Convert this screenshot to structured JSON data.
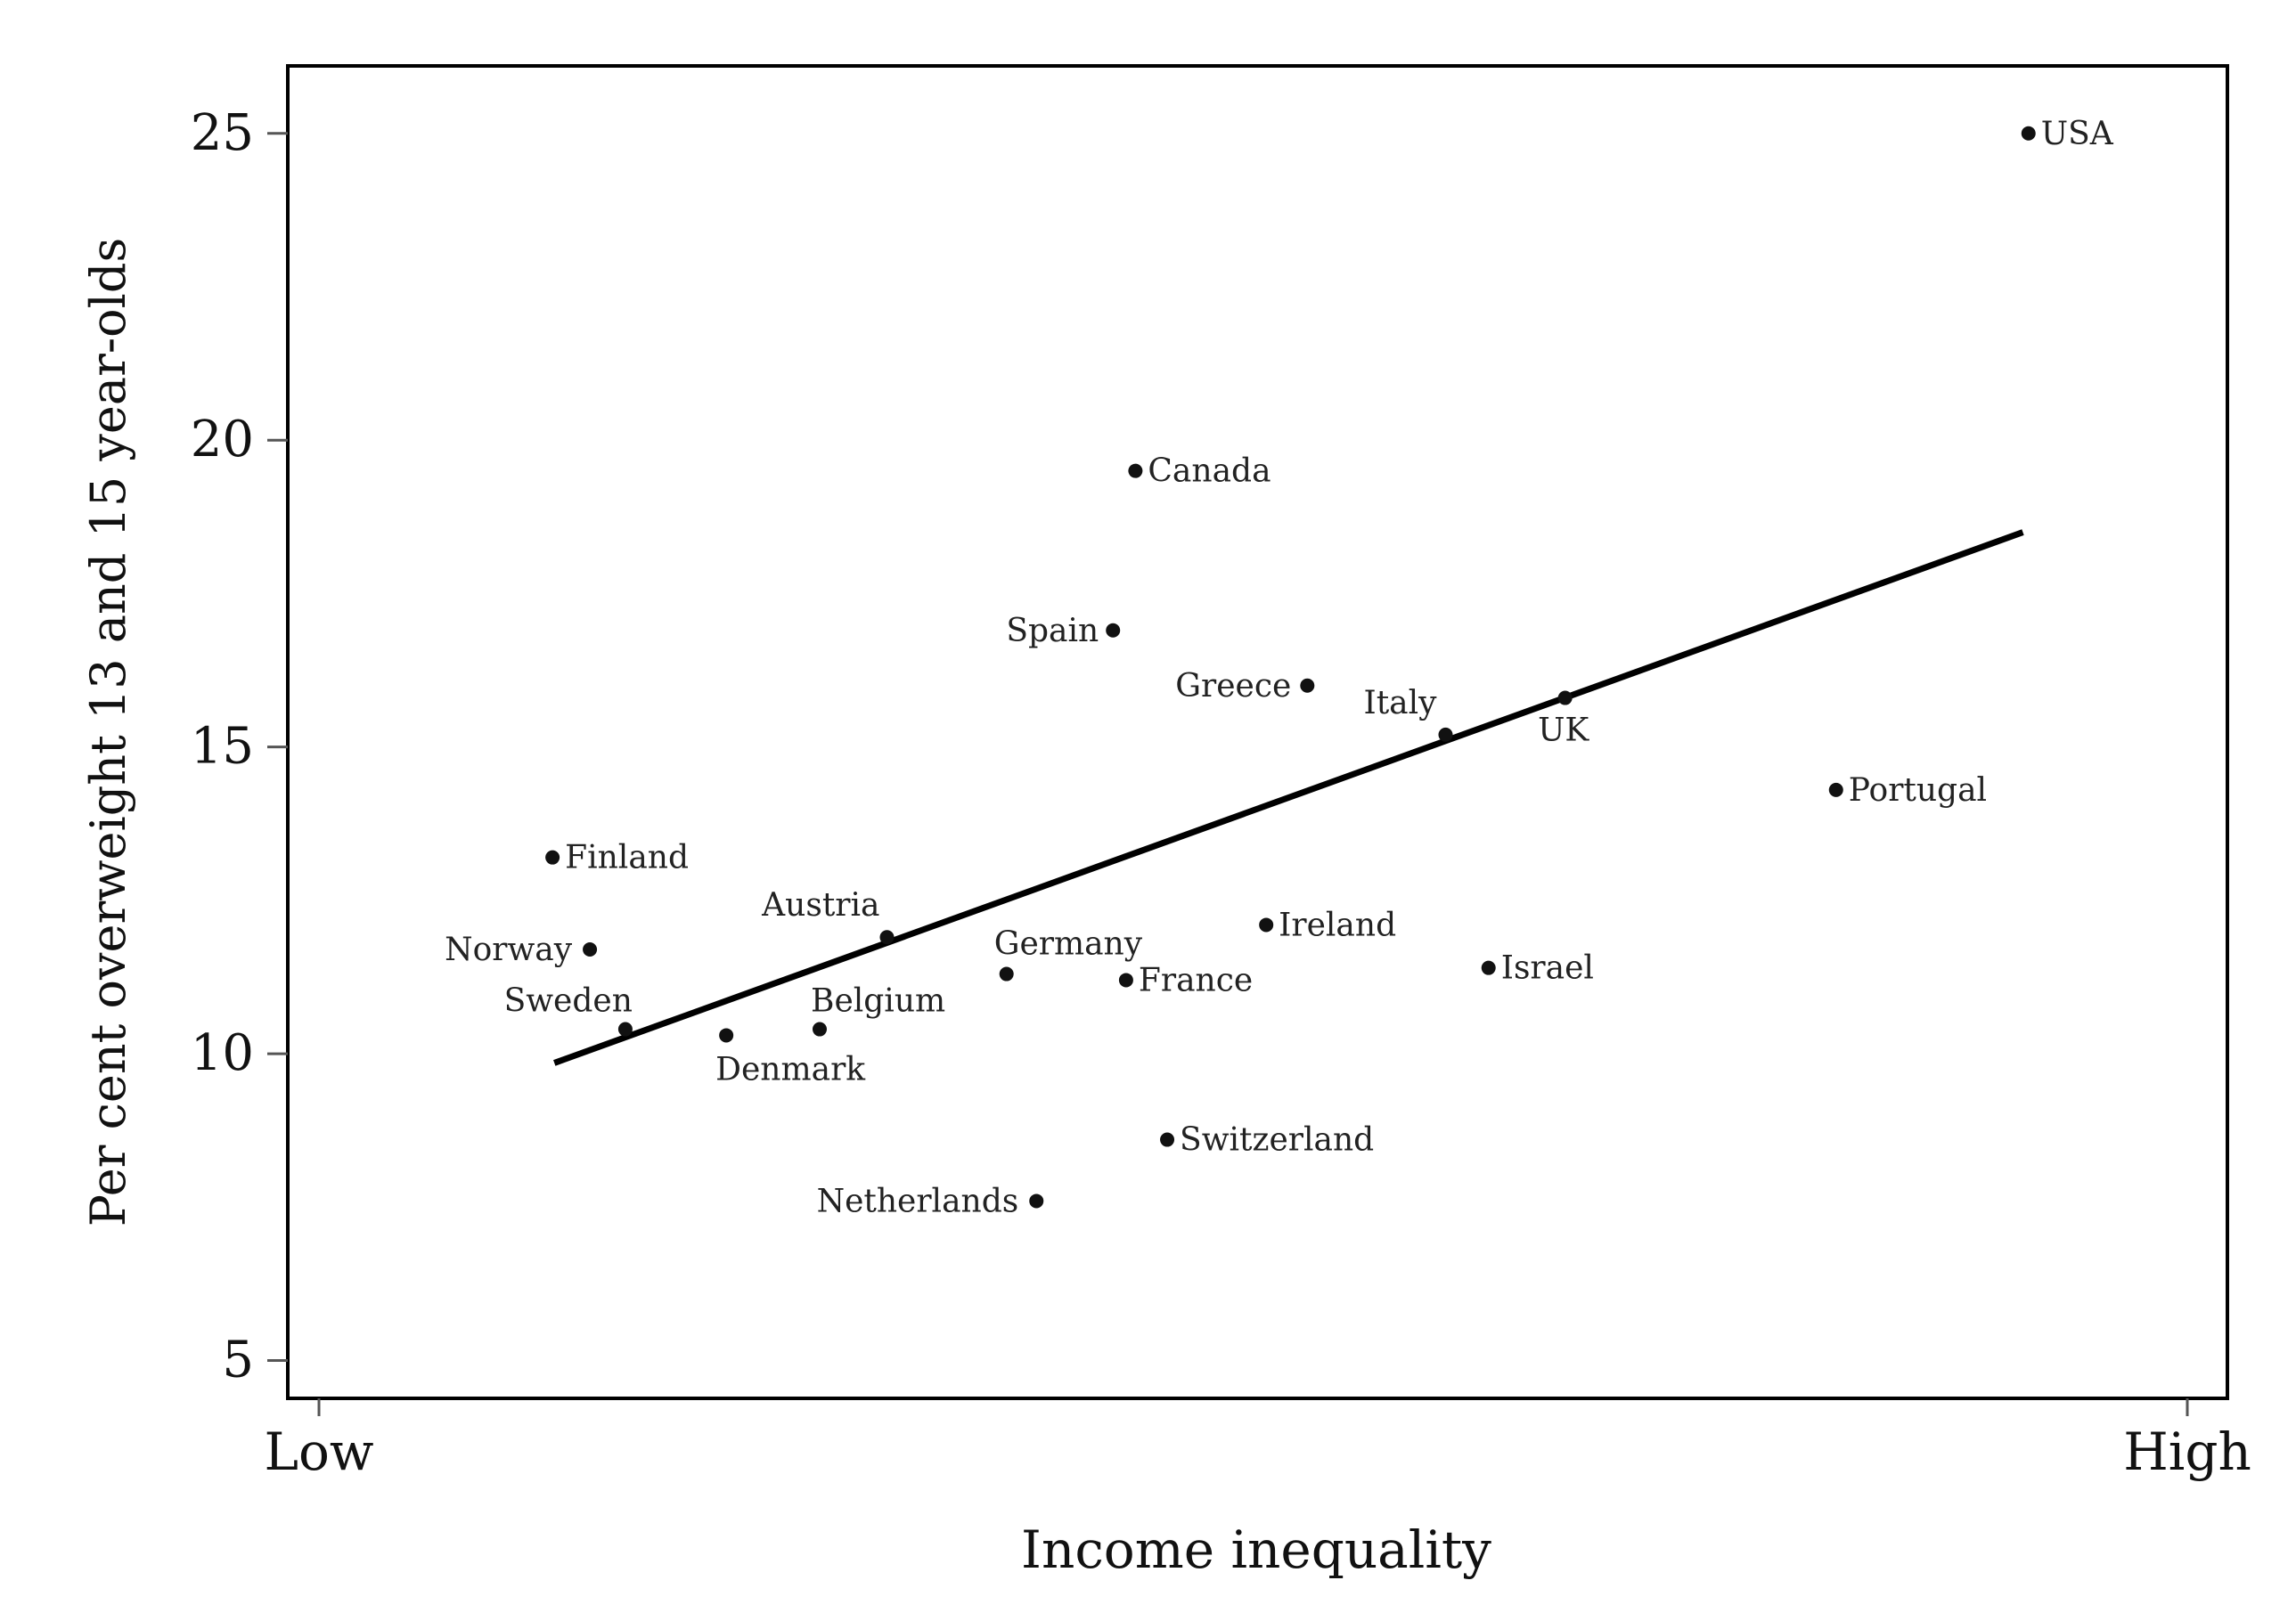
{
  "chart_data": {
    "type": "scatter",
    "title": "",
    "xlabel": "Income inequality",
    "ylabel": "Per cent overweight 13 and 15 year-olds",
    "x_tick_labels": [
      "Low",
      "High"
    ],
    "xlim": [
      0,
      100
    ],
    "ylim": [
      4.5,
      26.1
    ],
    "y_ticks": [
      5,
      10,
      15,
      20,
      25
    ],
    "grid": false,
    "legend": "none",
    "points": [
      {
        "label": "USA",
        "x": 91.5,
        "y": 25.0
      },
      {
        "label": "Canada",
        "x": 43.7,
        "y": 19.5
      },
      {
        "label": "Spain",
        "x": 42.5,
        "y": 16.9
      },
      {
        "label": "Greece",
        "x": 52.9,
        "y": 16.0
      },
      {
        "label": "Italy",
        "x": 60.3,
        "y": 15.2
      },
      {
        "label": "UK",
        "x": 66.7,
        "y": 15.8
      },
      {
        "label": "Portugal",
        "x": 81.2,
        "y": 14.3
      },
      {
        "label": "Finland",
        "x": 12.5,
        "y": 13.2
      },
      {
        "label": "Norway",
        "x": 14.5,
        "y": 11.7
      },
      {
        "label": "Austria",
        "x": 30.4,
        "y": 11.9
      },
      {
        "label": "Ireland",
        "x": 50.7,
        "y": 12.1
      },
      {
        "label": "Germany",
        "x": 36.8,
        "y": 11.3
      },
      {
        "label": "France",
        "x": 43.2,
        "y": 11.2
      },
      {
        "label": "Israel",
        "x": 62.6,
        "y": 11.4
      },
      {
        "label": "Sweden",
        "x": 16.4,
        "y": 10.4
      },
      {
        "label": "Belgium",
        "x": 26.8,
        "y": 10.4
      },
      {
        "label": "Denmark",
        "x": 21.8,
        "y": 10.3
      },
      {
        "label": "Switzerland",
        "x": 45.4,
        "y": 8.6
      },
      {
        "label": "Netherlands",
        "x": 38.4,
        "y": 7.6
      }
    ],
    "trend_line": {
      "x": [
        12.6,
        91.2
      ],
      "y": [
        9.85,
        18.5
      ]
    }
  }
}
